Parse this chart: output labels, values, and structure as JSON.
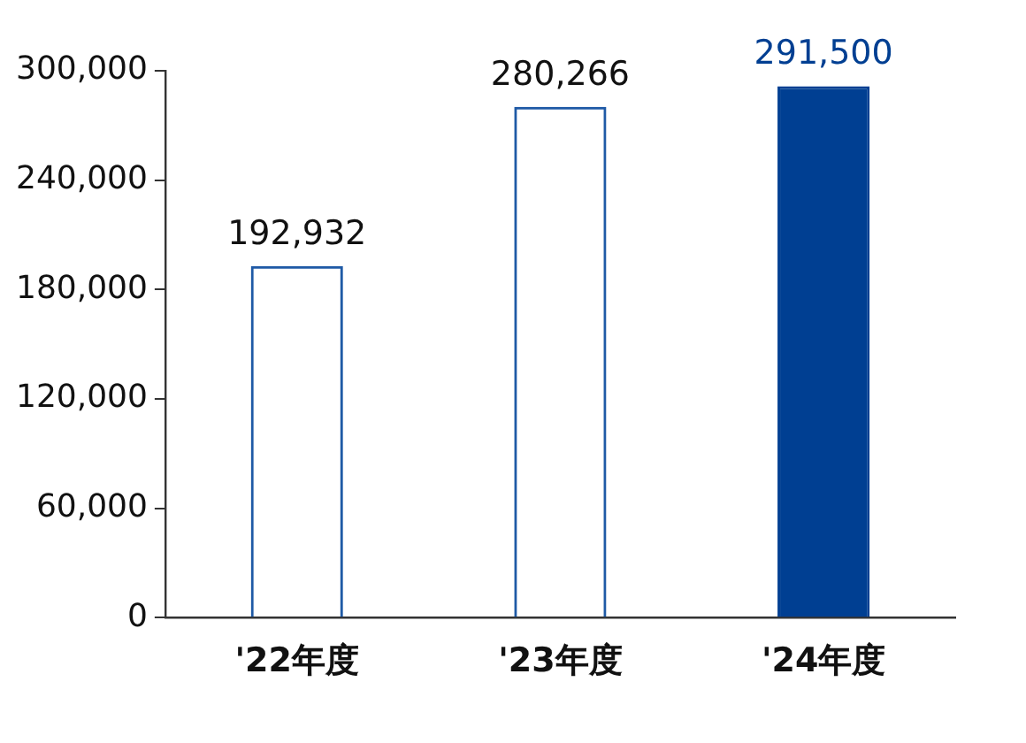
{
  "chart_data": {
    "type": "bar",
    "categories": [
      "'22年度",
      "'23年度",
      "'24年度"
    ],
    "values": [
      192932,
      280266,
      291500
    ],
    "color": "#1f5aa6",
    "colors": [
      "#1f5aa6",
      "#1f5aa6",
      "#003f92"
    ],
    "value_labels": [
      "192,932",
      "280,266",
      "291,500"
    ],
    "ylim": [
      0,
      300000
    ],
    "yticks": [
      0,
      {
        "value": 60000,
        "label": "60,000"
      },
      {
        "value": 120000,
        "label": "120,000"
      },
      {
        "value": 180000,
        "label": "180,000"
      },
      {
        "value": 240000,
        "label": "240,000"
      },
      {
        "value": 300000,
        "label": "300,000"
      }
    ],
    "grid": false,
    "legend": false
  }
}
